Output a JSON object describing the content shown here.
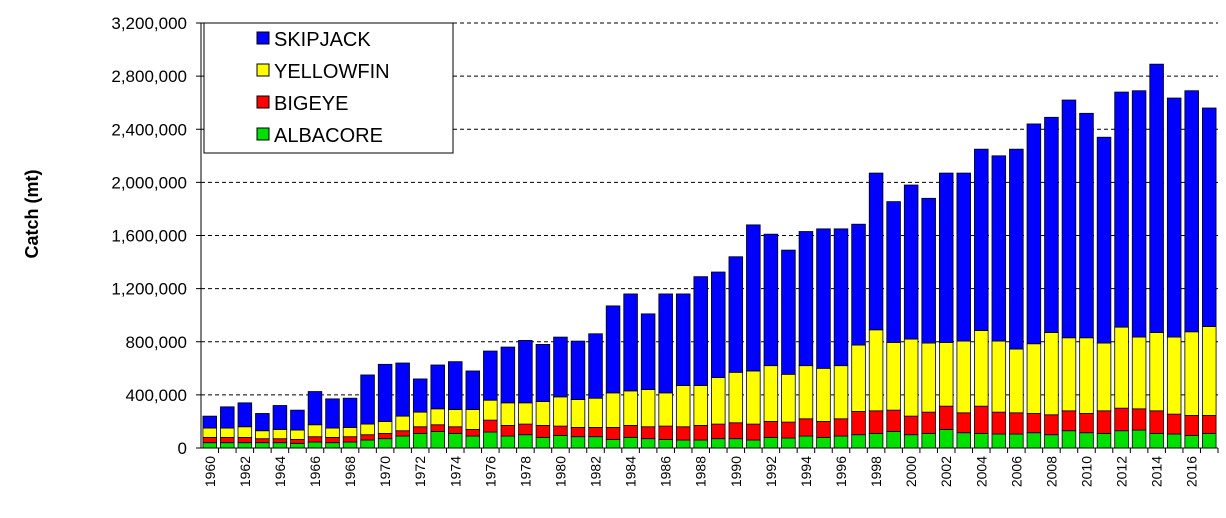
{
  "chart_data": {
    "type": "bar",
    "stacked": true,
    "ylabel": "Catch (mt)",
    "xlabel": "",
    "ylim": [
      0,
      3200000
    ],
    "yticks": [
      "0",
      "400,000",
      "800,000",
      "1,200,000",
      "1,600,000",
      "2,000,000",
      "2,400,000",
      "2,800,000",
      "3,200,000"
    ],
    "grid": "horizontal dashed",
    "legend_position": "top-left",
    "categories": [
      "1960",
      "1961",
      "1962",
      "1963",
      "1964",
      "1965",
      "1966",
      "1967",
      "1968",
      "1969",
      "1970",
      "1971",
      "1972",
      "1973",
      "1974",
      "1975",
      "1976",
      "1977",
      "1978",
      "1979",
      "1980",
      "1981",
      "1982",
      "1983",
      "1984",
      "1985",
      "1986",
      "1987",
      "1988",
      "1989",
      "1990",
      "1991",
      "1992",
      "1993",
      "1994",
      "1995",
      "1996",
      "1997",
      "1998",
      "1999",
      "2000",
      "2001",
      "2002",
      "2003",
      "2004",
      "2005",
      "2006",
      "2007",
      "2008",
      "2009",
      "2010",
      "2011",
      "2012",
      "2013",
      "2014",
      "2015",
      "2016",
      "2017"
    ],
    "series": [
      {
        "name": "ALBACORE",
        "color": "#00e000",
        "values": [
          40000,
          40000,
          40000,
          40000,
          40000,
          35000,
          45000,
          40000,
          45000,
          60000,
          70000,
          90000,
          110000,
          125000,
          110000,
          90000,
          120000,
          90000,
          100000,
          80000,
          95000,
          85000,
          85000,
          65000,
          80000,
          70000,
          65000,
          60000,
          60000,
          70000,
          70000,
          60000,
          80000,
          75000,
          90000,
          80000,
          90000,
          100000,
          110000,
          125000,
          100000,
          110000,
          140000,
          115000,
          110000,
          105000,
          105000,
          115000,
          100000,
          130000,
          115000,
          110000,
          130000,
          135000,
          110000,
          105000,
          95000,
          110000
        ]
      },
      {
        "name": "BIGEYE",
        "color": "#ff0000",
        "values": [
          40000,
          40000,
          40000,
          30000,
          30000,
          30000,
          40000,
          40000,
          40000,
          40000,
          40000,
          40000,
          50000,
          50000,
          50000,
          50000,
          90000,
          80000,
          80000,
          90000,
          70000,
          70000,
          70000,
          90000,
          90000,
          90000,
          100000,
          100000,
          110000,
          110000,
          120000,
          120000,
          120000,
          120000,
          130000,
          120000,
          130000,
          175000,
          170000,
          160000,
          140000,
          160000,
          175000,
          150000,
          205000,
          165000,
          160000,
          145000,
          150000,
          150000,
          145000,
          170000,
          170000,
          160000,
          170000,
          150000,
          150000,
          135000
        ]
      },
      {
        "name": "YELLOWFIN",
        "color": "#ffff00",
        "values": [
          70000,
          70000,
          80000,
          60000,
          70000,
          70000,
          90000,
          70000,
          70000,
          80000,
          90000,
          110000,
          110000,
          120000,
          130000,
          150000,
          150000,
          170000,
          160000,
          180000,
          220000,
          210000,
          220000,
          260000,
          260000,
          280000,
          250000,
          310000,
          300000,
          350000,
          380000,
          400000,
          420000,
          360000,
          400000,
          400000,
          400000,
          500000,
          610000,
          510000,
          580000,
          520000,
          480000,
          540000,
          570000,
          535000,
          480000,
          525000,
          620000,
          550000,
          570000,
          510000,
          610000,
          540000,
          590000,
          580000,
          630000,
          670000
        ]
      },
      {
        "name": "SKIPJACK",
        "color": "#0000ff",
        "values": [
          90000,
          160000,
          180000,
          130000,
          180000,
          150000,
          250000,
          220000,
          220000,
          370000,
          430000,
          400000,
          250000,
          330000,
          360000,
          290000,
          370000,
          420000,
          470000,
          430000,
          450000,
          440000,
          485000,
          655000,
          730000,
          570000,
          745000,
          690000,
          820000,
          795000,
          870000,
          1100000,
          990000,
          935000,
          1010000,
          1050000,
          1030000,
          910000,
          1180000,
          1060000,
          1160000,
          1090000,
          1275000,
          1265000,
          1365000,
          1395000,
          1505000,
          1655000,
          1620000,
          1790000,
          1690000,
          1550000,
          1770000,
          1855000,
          2020000,
          1800000,
          1815000,
          1645000
        ]
      }
    ],
    "legend_order": [
      "SKIPJACK",
      "YELLOWFIN",
      "BIGEYE",
      "ALBACORE"
    ]
  }
}
